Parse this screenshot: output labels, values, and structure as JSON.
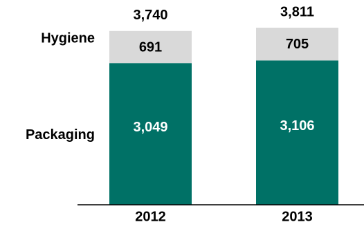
{
  "chart_data": {
    "type": "bar",
    "stacked": true,
    "categories": [
      "2012",
      "2013"
    ],
    "series": [
      {
        "name": "Packaging",
        "values": [
          3049,
          3106
        ],
        "color": "#007166"
      },
      {
        "name": "Hygiene",
        "values": [
          691,
          705
        ],
        "color": "#d9d9d9"
      }
    ],
    "totals": [
      3740,
      3811
    ],
    "value_labels": {
      "Packaging": [
        "3,049",
        "3,106"
      ],
      "Hygiene": [
        "691",
        "705"
      ],
      "totals": [
        "3,740",
        "3,811"
      ]
    },
    "ylim": [
      0,
      3811
    ],
    "grid": false,
    "legend": "left-labels",
    "label_color_inside_dark": "#ffffff",
    "label_color_default": "#000000"
  }
}
